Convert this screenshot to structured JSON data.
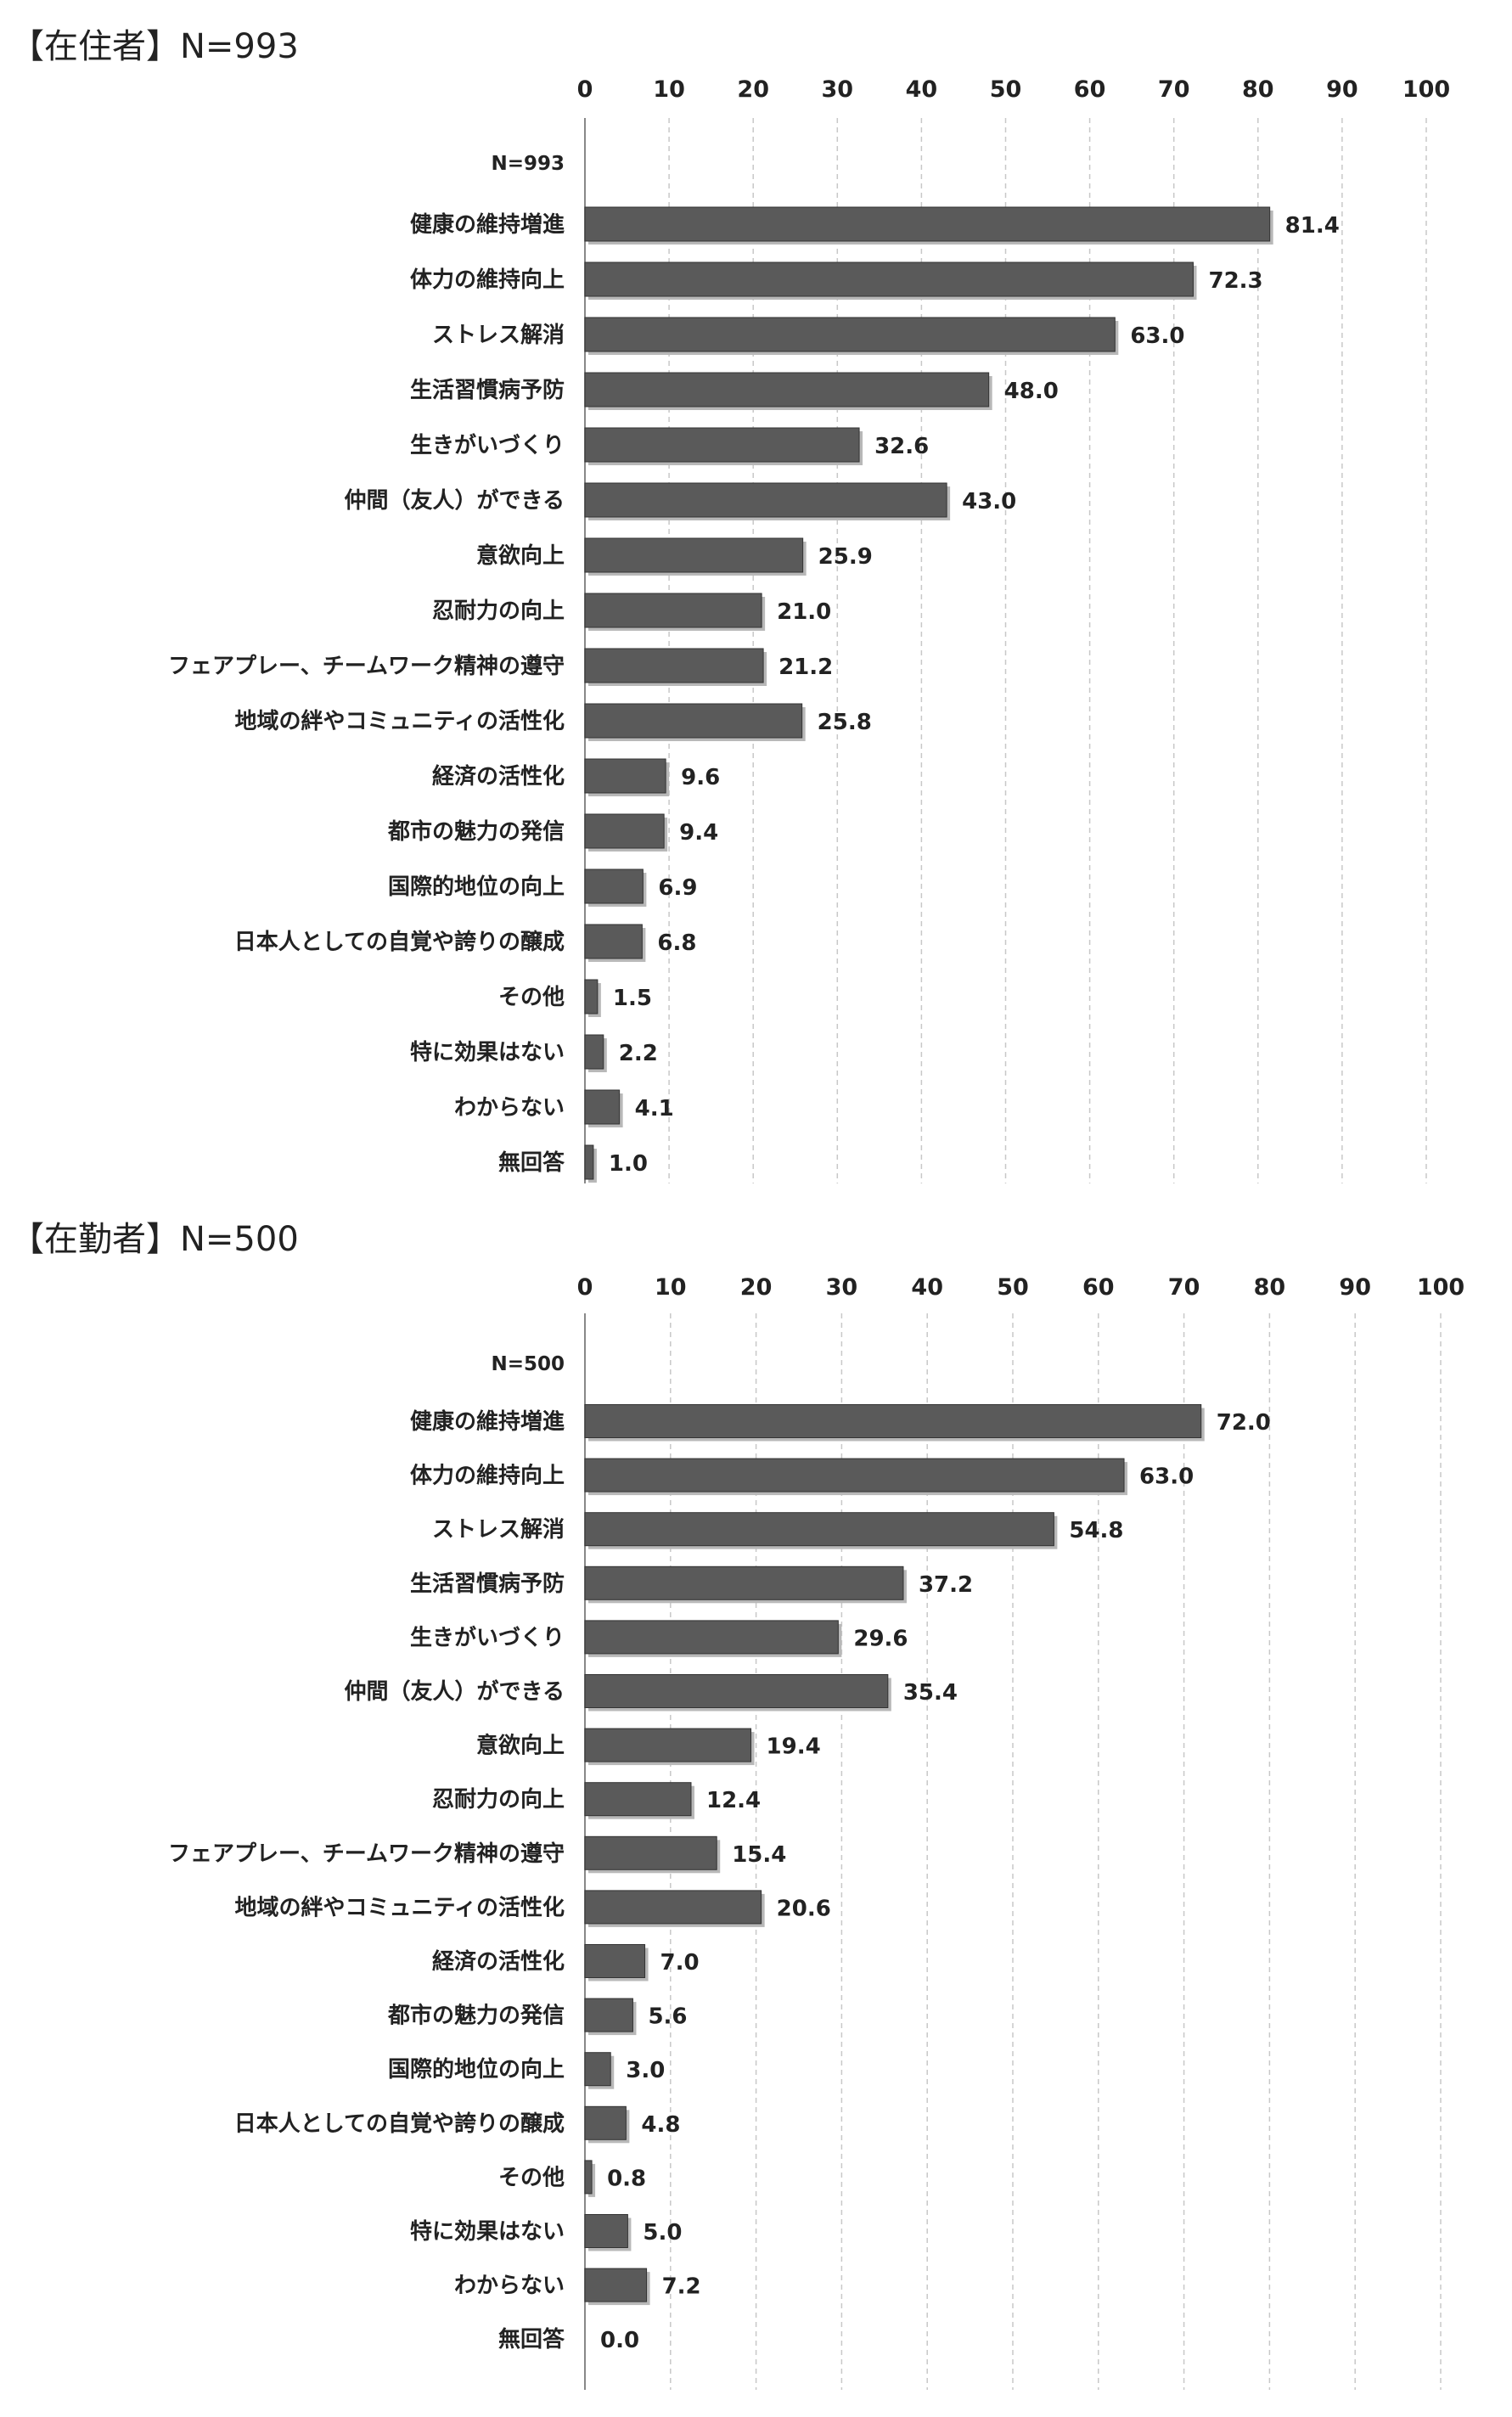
{
  "chart_data": [
    {
      "type": "bar",
      "orientation": "horizontal",
      "title": "【在住者】N=993",
      "sample_label": "N=993",
      "xlim": [
        0,
        100
      ],
      "ticks": [
        0,
        10,
        20,
        30,
        40,
        50,
        60,
        70,
        80,
        90,
        100
      ],
      "grid": true,
      "categories": [
        "健康の維持増進",
        "体力の維持向上",
        "ストレス解消",
        "生活習慣病予防",
        "生きがいづくり",
        "仲間（友人）ができる",
        "意欲向上",
        "忍耐力の向上",
        "フェアプレー、チームワーク精神の遵守",
        "地域の絆やコミュニティの活性化",
        "経済の活性化",
        "都市の魅力の発信",
        "国際的地位の向上",
        "日本人としての自覚や誇りの醸成",
        "その他",
        "特に効果はない",
        "わからない",
        "無回答"
      ],
      "values": [
        81.4,
        72.3,
        63.0,
        48.0,
        32.6,
        43.0,
        25.9,
        21.0,
        21.2,
        25.8,
        9.6,
        9.4,
        6.9,
        6.8,
        1.5,
        2.2,
        4.1,
        1.0
      ],
      "value_labels": [
        "81.4",
        "72.3",
        "63.0",
        "48.0",
        "32.6",
        "43.0",
        "25.9",
        "21.0",
        "21.2",
        "25.8",
        "9.6",
        "9.4",
        "6.9",
        "6.8",
        "1.5",
        "2.2",
        "4.1",
        "1.0"
      ]
    },
    {
      "type": "bar",
      "orientation": "horizontal",
      "title": "【在勤者】N=500",
      "sample_label": "N=500",
      "xlim": [
        0,
        100
      ],
      "ticks": [
        0,
        10,
        20,
        30,
        40,
        50,
        60,
        70,
        80,
        90,
        100
      ],
      "grid": true,
      "categories": [
        "健康の維持増進",
        "体力の維持向上",
        "ストレス解消",
        "生活習慣病予防",
        "生きがいづくり",
        "仲間（友人）ができる",
        "意欲向上",
        "忍耐力の向上",
        "フェアプレー、チームワーク精神の遵守",
        "地域の絆やコミュニティの活性化",
        "経済の活性化",
        "都市の魅力の発信",
        "国際的地位の向上",
        "日本人としての自覚や誇りの醸成",
        "その他",
        "特に効果はない",
        "わからない",
        "無回答"
      ],
      "values": [
        72.0,
        63.0,
        54.8,
        37.2,
        29.6,
        35.4,
        19.4,
        12.4,
        15.4,
        20.6,
        7.0,
        5.6,
        3.0,
        4.8,
        0.8,
        5.0,
        7.2,
        0.0
      ],
      "value_labels": [
        "72.0",
        "63.0",
        "54.8",
        "37.2",
        "29.6",
        "35.4",
        "19.4",
        "12.4",
        "15.4",
        "20.6",
        "7.0",
        "5.6",
        "3.0",
        "4.8",
        "0.8",
        "5.0",
        "7.2",
        "0.0"
      ]
    }
  ],
  "colors": {
    "bar": "#5a5a5a",
    "bar_shadow": "#b8b8b8",
    "grid": "#c8c8c8",
    "axis": "#888888"
  }
}
